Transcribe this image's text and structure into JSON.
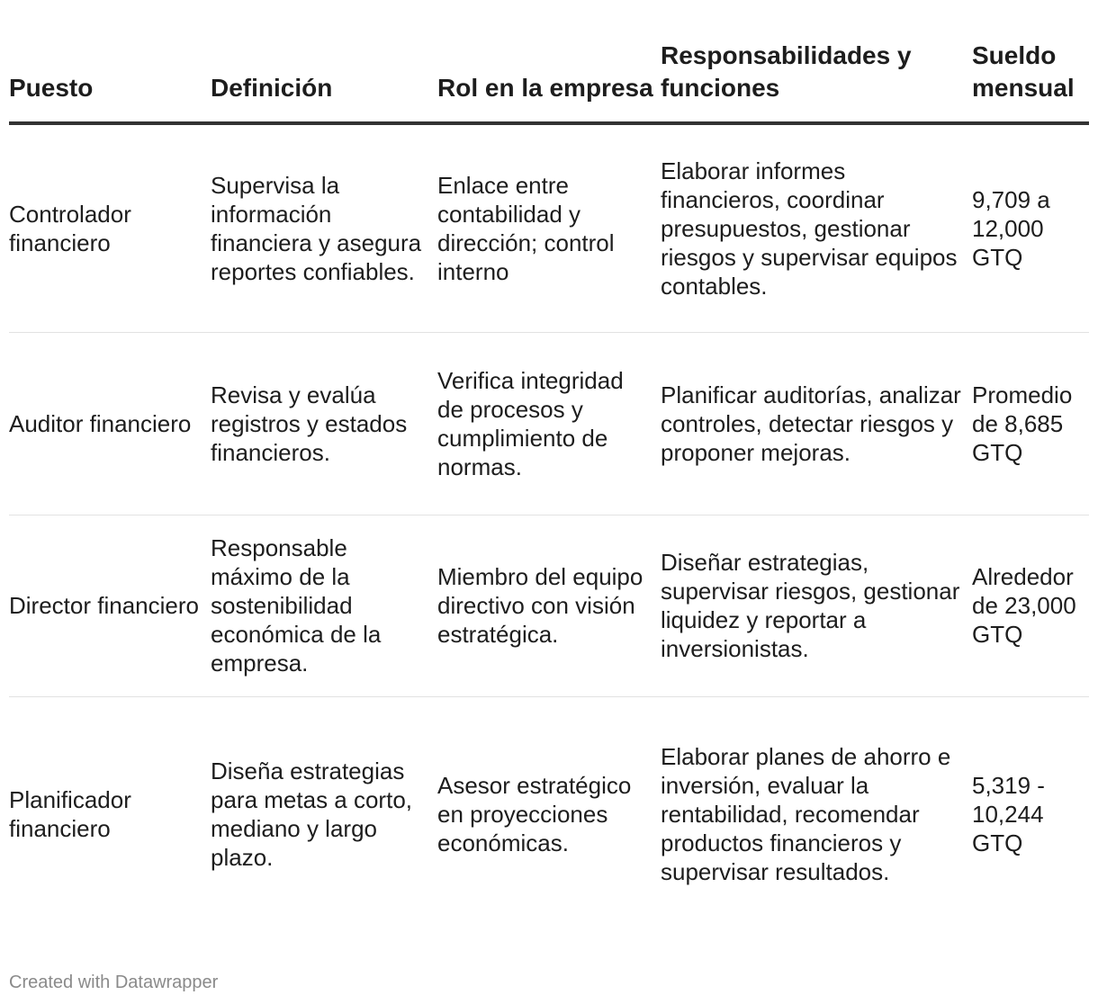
{
  "table": {
    "headers": [
      "Puesto",
      "Definición",
      "Rol en la empresa",
      "Responsabilidades y funciones",
      "Sueldo mensual"
    ],
    "rows": [
      {
        "puesto": "Controlador financiero",
        "definicion": "Supervisa la información financiera y asegura reportes confiables.",
        "rol": "Enlace entre contabilidad y dirección; control interno",
        "responsabilidades": "Elaborar informes financieros, coordinar presupuestos, gestionar riesgos y supervisar equipos contables.",
        "sueldo": "9,709 a 12,000 GTQ"
      },
      {
        "puesto": "Auditor financiero",
        "definicion": "Revisa y evalúa registros y estados financieros.",
        "rol": "Verifica integridad de procesos y cumplimiento de normas.",
        "responsabilidades": "Planificar auditorías, analizar controles, detectar riesgos y proponer mejoras.",
        "sueldo": "Promedio de 8,685 GTQ"
      },
      {
        "puesto": "Director financiero",
        "definicion": "Responsable máximo de la sostenibilidad económica de la empresa.",
        "rol": "Miembro del equipo directivo con visión estratégica.",
        "responsabilidades": "Diseñar estrategias, supervisar riesgos, gestionar liquidez y reportar a inversionistas.",
        "sueldo": "Alrededor de 23,000 GTQ"
      },
      {
        "puesto": "Planificador financiero",
        "definicion": "Diseña estrategias para metas a corto, mediano y largo plazo.",
        "rol": "Asesor estratégico en proyecciones económicas.",
        "responsabilidades": "Elaborar planes de ahorro e inversión, evaluar la rentabilidad, recomendar productos financieros y supervisar resultados.",
        "sueldo": "5,319 - 10,244 GTQ"
      }
    ]
  },
  "footer": {
    "credit": "Created with Datawrapper"
  }
}
